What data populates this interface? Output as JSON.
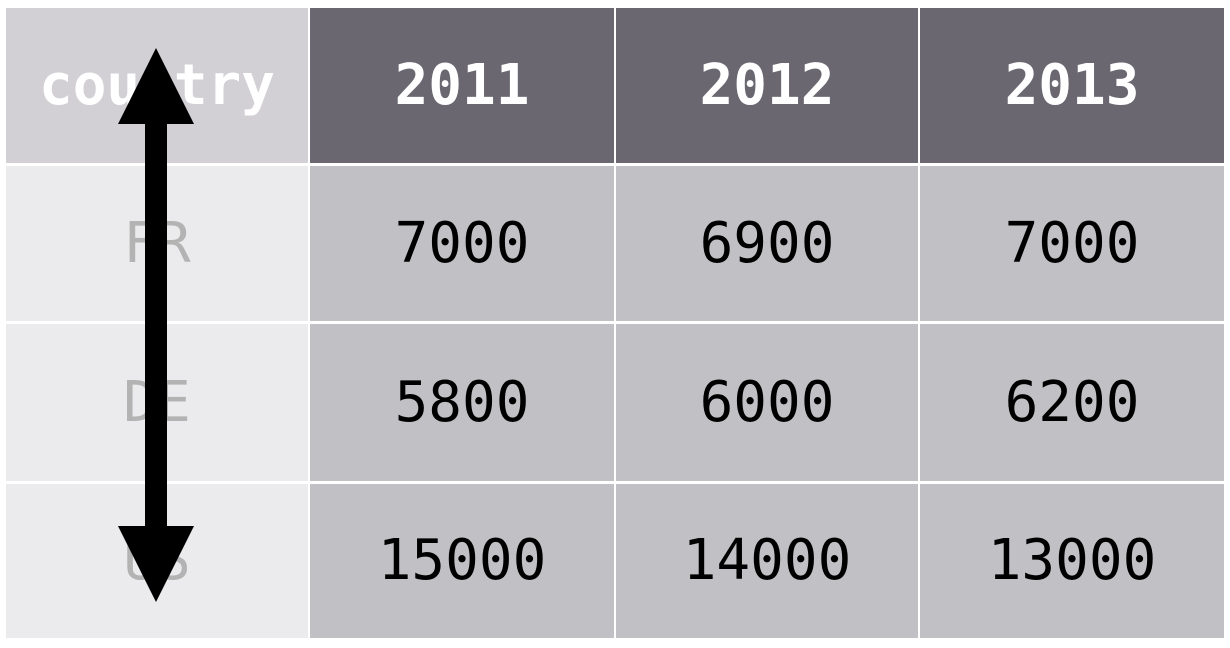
{
  "table": {
    "corner_label": "country",
    "years": [
      "2011",
      "2012",
      "2013"
    ],
    "rows": [
      {
        "country": "FR",
        "values": [
          "7000",
          "6900",
          "7000"
        ]
      },
      {
        "country": "DE",
        "values": [
          "5800",
          "6000",
          "6200"
        ]
      },
      {
        "country": "US",
        "values": [
          "15000",
          "14000",
          "13000"
        ]
      }
    ]
  },
  "annotation": {
    "icon": "double-headed-vertical-arrow-icon"
  },
  "colors": {
    "header_label_bg": "#d2d0d5",
    "header_bg": "#6a6771",
    "row_label_bg": "#ebebed",
    "row_label_text": "#b3b3b3",
    "value_bg": "#c1c0c5",
    "arrow": "#000000"
  }
}
